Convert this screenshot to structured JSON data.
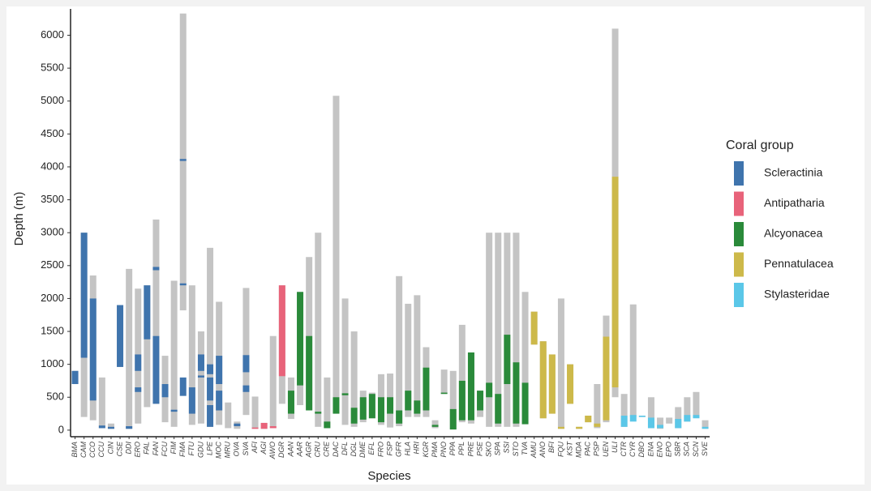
{
  "chart_data": {
    "type": "range-bar",
    "y_label": "Depth (m)",
    "x_label": "Species",
    "legend_title": "Coral group",
    "range_color": "#c4c4c4",
    "ylim": [
      -100,
      6400
    ],
    "yticks": [
      0,
      500,
      1000,
      1500,
      2000,
      2500,
      3000,
      3500,
      4000,
      4500,
      5000,
      5500,
      6000
    ],
    "groups": [
      {
        "name": "Scleractinia",
        "color": "#3f74ad",
        "species": [
          {
            "code": "BMA",
            "range": [
              700,
              900
            ],
            "observed": [
              [
                700,
                900
              ]
            ]
          },
          {
            "code": "CAM",
            "range": [
              200,
              3000
            ],
            "observed": [
              [
                1100,
                3000
              ]
            ]
          },
          {
            "code": "CCO",
            "range": [
              150,
              2350
            ],
            "observed": [
              [
                450,
                2000
              ]
            ]
          },
          {
            "code": "CCU",
            "range": [
              30,
              800
            ],
            "observed": [
              [
                30,
                70
              ]
            ]
          },
          {
            "code": "CIN",
            "range": [
              20,
              100
            ],
            "observed": [
              [
                20,
                50
              ]
            ]
          },
          {
            "code": "CSE",
            "range": [
              960,
              1900
            ],
            "observed": [
              [
                960,
                1900
              ]
            ]
          },
          {
            "code": "DDI",
            "range": [
              20,
              2450
            ],
            "observed": [
              [
                20,
                60
              ]
            ]
          },
          {
            "code": "ERO",
            "range": [
              100,
              2150
            ],
            "observed": [
              [
                900,
                1150
              ],
              [
                580,
                650
              ]
            ]
          },
          {
            "code": "FAL",
            "range": [
              350,
              2200
            ],
            "observed": [
              [
                1380,
                2200
              ]
            ]
          },
          {
            "code": "FAN",
            "range": [
              400,
              3200
            ],
            "observed": [
              [
                400,
                1430
              ],
              [
                2430,
                2480
              ]
            ]
          },
          {
            "code": "FCU",
            "range": [
              120,
              1130
            ],
            "observed": [
              [
                500,
                700
              ]
            ]
          },
          {
            "code": "FIM",
            "range": [
              50,
              2270
            ],
            "observed": [
              [
                280,
                310
              ]
            ]
          },
          {
            "code": "FMA",
            "range": [
              1820,
              6330
            ],
            "observed": [
              [
                4090,
                4120
              ],
              [
                2200,
                2230
              ],
              [
                520,
                800
              ]
            ]
          },
          {
            "code": "FTU",
            "range": [
              80,
              2200
            ],
            "observed": [
              [
                250,
                650
              ]
            ]
          },
          {
            "code": "GDU",
            "range": [
              100,
              1500
            ],
            "observed": [
              [
                900,
                1150
              ],
              [
                800,
                830
              ]
            ]
          },
          {
            "code": "LPE",
            "range": [
              50,
              2770
            ],
            "observed": [
              [
                450,
                800
              ],
              [
                50,
                380
              ],
              [
                850,
                1000
              ]
            ]
          },
          {
            "code": "MOC",
            "range": [
              80,
              1950
            ],
            "observed": [
              [
                700,
                1130
              ],
              [
                300,
                600
              ]
            ]
          },
          {
            "code": "MRU",
            "range": [
              30,
              420
            ],
            "observed": []
          },
          {
            "code": "OVA",
            "range": [
              20,
              130
            ],
            "observed": [
              [
                60,
                100
              ]
            ]
          },
          {
            "code": "SVA",
            "range": [
              230,
              2160
            ],
            "observed": [
              [
                880,
                1140
              ],
              [
                580,
                680
              ]
            ]
          }
        ]
      },
      {
        "name": "Antipatharia",
        "color": "#e8637a",
        "species": [
          {
            "code": "AFI",
            "range": [
              20,
              510
            ],
            "observed": [
              [
                20,
                40
              ]
            ]
          },
          {
            "code": "AGI",
            "range": [
              20,
              110
            ],
            "observed": [
              [
                20,
                110
              ]
            ]
          },
          {
            "code": "AWO",
            "range": [
              30,
              1430
            ],
            "observed": [
              [
                30,
                60
              ]
            ]
          },
          {
            "code": "DGR",
            "range": [
              400,
              2200
            ],
            "observed": [
              [
                820,
                2200
              ]
            ]
          }
        ]
      },
      {
        "name": "Alcyonacea",
        "color": "#2a8a3a",
        "species": [
          {
            "code": "AAN",
            "range": [
              170,
              800
            ],
            "observed": [
              [
                250,
                600
              ]
            ]
          },
          {
            "code": "AAR",
            "range": [
              380,
              2100
            ],
            "observed": [
              [
                680,
                2100
              ]
            ]
          },
          {
            "code": "AGR",
            "range": [
              300,
              2630
            ],
            "observed": [
              [
                300,
                1430
              ]
            ]
          },
          {
            "code": "CRU",
            "range": [
              50,
              3000
            ],
            "observed": [
              [
                250,
                280
              ]
            ]
          },
          {
            "code": "CRE",
            "range": [
              30,
              800
            ],
            "observed": [
              [
                30,
                130
              ]
            ]
          },
          {
            "code": "DAC",
            "range": [
              250,
              5080
            ],
            "observed": [
              [
                250,
                500
              ]
            ]
          },
          {
            "code": "DFL",
            "range": [
              80,
              2000
            ],
            "observed": [
              [
                530,
                560
              ]
            ]
          },
          {
            "code": "DGL",
            "range": [
              50,
              1500
            ],
            "observed": [
              [
                100,
                340
              ]
            ]
          },
          {
            "code": "DME",
            "range": [
              120,
              600
            ],
            "observed": [
              [
                160,
                500
              ]
            ]
          },
          {
            "code": "EFL",
            "range": [
              180,
              570
            ],
            "observed": [
              [
                180,
                550
              ]
            ]
          },
          {
            "code": "FRO",
            "range": [
              80,
              850
            ],
            "observed": [
              [
                120,
                500
              ]
            ]
          },
          {
            "code": "FSP",
            "range": [
              40,
              860
            ],
            "observed": [
              [
                250,
                500
              ]
            ]
          },
          {
            "code": "GFR",
            "range": [
              60,
              2340
            ],
            "observed": [
              [
                100,
                300
              ]
            ]
          },
          {
            "code": "HLA",
            "range": [
              200,
              1920
            ],
            "observed": [
              [
                300,
                600
              ]
            ]
          },
          {
            "code": "HRI",
            "range": [
              200,
              2050
            ],
            "observed": [
              [
                250,
                450
              ]
            ]
          },
          {
            "code": "KGR",
            "range": [
              200,
              1260
            ],
            "observed": [
              [
                300,
                950
              ]
            ]
          },
          {
            "code": "PMA",
            "range": [
              30,
              150
            ],
            "observed": [
              [
                50,
                80
              ]
            ]
          },
          {
            "code": "PNO",
            "range": [
              550,
              920
            ],
            "observed": [
              [
                550,
                570
              ]
            ]
          },
          {
            "code": "PPA",
            "range": [
              10,
              900
            ],
            "observed": [
              [
                10,
                320
              ]
            ]
          },
          {
            "code": "PPL",
            "range": [
              120,
              1600
            ],
            "observed": [
              [
                150,
                750
              ]
            ]
          },
          {
            "code": "PRE",
            "range": [
              100,
              1180
            ],
            "observed": [
              [
                150,
                1180
              ]
            ]
          },
          {
            "code": "PSE",
            "range": [
              200,
              600
            ],
            "observed": [
              [
                300,
                600
              ]
            ]
          },
          {
            "code": "SKO",
            "range": [
              50,
              3000
            ],
            "observed": [
              [
                500,
                720
              ]
            ]
          },
          {
            "code": "SPA",
            "range": [
              50,
              3000
            ],
            "observed": [
              [
                100,
                550
              ]
            ]
          },
          {
            "code": "SSI",
            "range": [
              50,
              3000
            ],
            "observed": [
              [
                700,
                1450
              ]
            ]
          },
          {
            "code": "STO",
            "range": [
              50,
              3000
            ],
            "observed": [
              [
                100,
                1030
              ]
            ]
          },
          {
            "code": "TVA",
            "range": [
              90,
              2100
            ],
            "observed": [
              [
                90,
                720
              ]
            ]
          }
        ]
      },
      {
        "name": "Pennatulacea",
        "color": "#cdb94a",
        "species": [
          {
            "code": "AMU",
            "range": [
              1300,
              1800
            ],
            "observed": [
              [
                1300,
                1800
              ]
            ]
          },
          {
            "code": "ANO",
            "range": [
              180,
              1350
            ],
            "observed": [
              [
                180,
                1350
              ]
            ]
          },
          {
            "code": "BFI",
            "range": [
              250,
              1150
            ],
            "observed": [
              [
                250,
                1150
              ]
            ]
          },
          {
            "code": "FQU",
            "range": [
              20,
              2000
            ],
            "observed": [
              [
                20,
                50
              ]
            ]
          },
          {
            "code": "KST",
            "range": [
              400,
              1000
            ],
            "observed": [
              [
                400,
                1000
              ]
            ]
          },
          {
            "code": "MDA",
            "range": [
              20,
              50
            ],
            "observed": [
              [
                20,
                50
              ]
            ]
          },
          {
            "code": "PAC",
            "range": [
              120,
              220
            ],
            "observed": [
              [
                120,
                220
              ]
            ]
          },
          {
            "code": "PSP",
            "range": [
              30,
              700
            ],
            "observed": [
              [
                50,
                100
              ]
            ]
          },
          {
            "code": "UEN",
            "range": [
              120,
              1740
            ],
            "observed": [
              [
                150,
                1420
              ]
            ]
          },
          {
            "code": "ULI",
            "range": [
              500,
              6100
            ],
            "observed": [
              [
                650,
                3850
              ]
            ]
          }
        ]
      },
      {
        "name": "Stylasteridae",
        "color": "#5bc7e8",
        "species": [
          {
            "code": "CTR",
            "range": [
              50,
              550
            ],
            "observed": [
              [
                50,
                220
              ]
            ]
          },
          {
            "code": "CYR",
            "range": [
              200,
              1910
            ],
            "observed": [
              [
                130,
                230
              ]
            ]
          },
          {
            "code": "DBO",
            "range": [
              200,
              220
            ],
            "observed": [
              [
                200,
                220
              ]
            ]
          },
          {
            "code": "ENA",
            "range": [
              30,
              500
            ],
            "observed": [
              [
                30,
                190
              ]
            ]
          },
          {
            "code": "ENO",
            "range": [
              20,
              190
            ],
            "observed": [
              [
                30,
                80
              ]
            ]
          },
          {
            "code": "EPO",
            "range": [
              100,
              190
            ],
            "observed": []
          },
          {
            "code": "SBR",
            "range": [
              30,
              350
            ],
            "observed": [
              [
                30,
                170
              ]
            ]
          },
          {
            "code": "SCA",
            "range": [
              130,
              500
            ],
            "observed": [
              [
                130,
                230
              ]
            ]
          },
          {
            "code": "SCN",
            "range": [
              200,
              580
            ],
            "observed": [
              [
                180,
                230
              ]
            ]
          },
          {
            "code": "SVE",
            "range": [
              20,
              150
            ],
            "observed": [
              [
                20,
                50
              ]
            ]
          }
        ]
      }
    ]
  }
}
